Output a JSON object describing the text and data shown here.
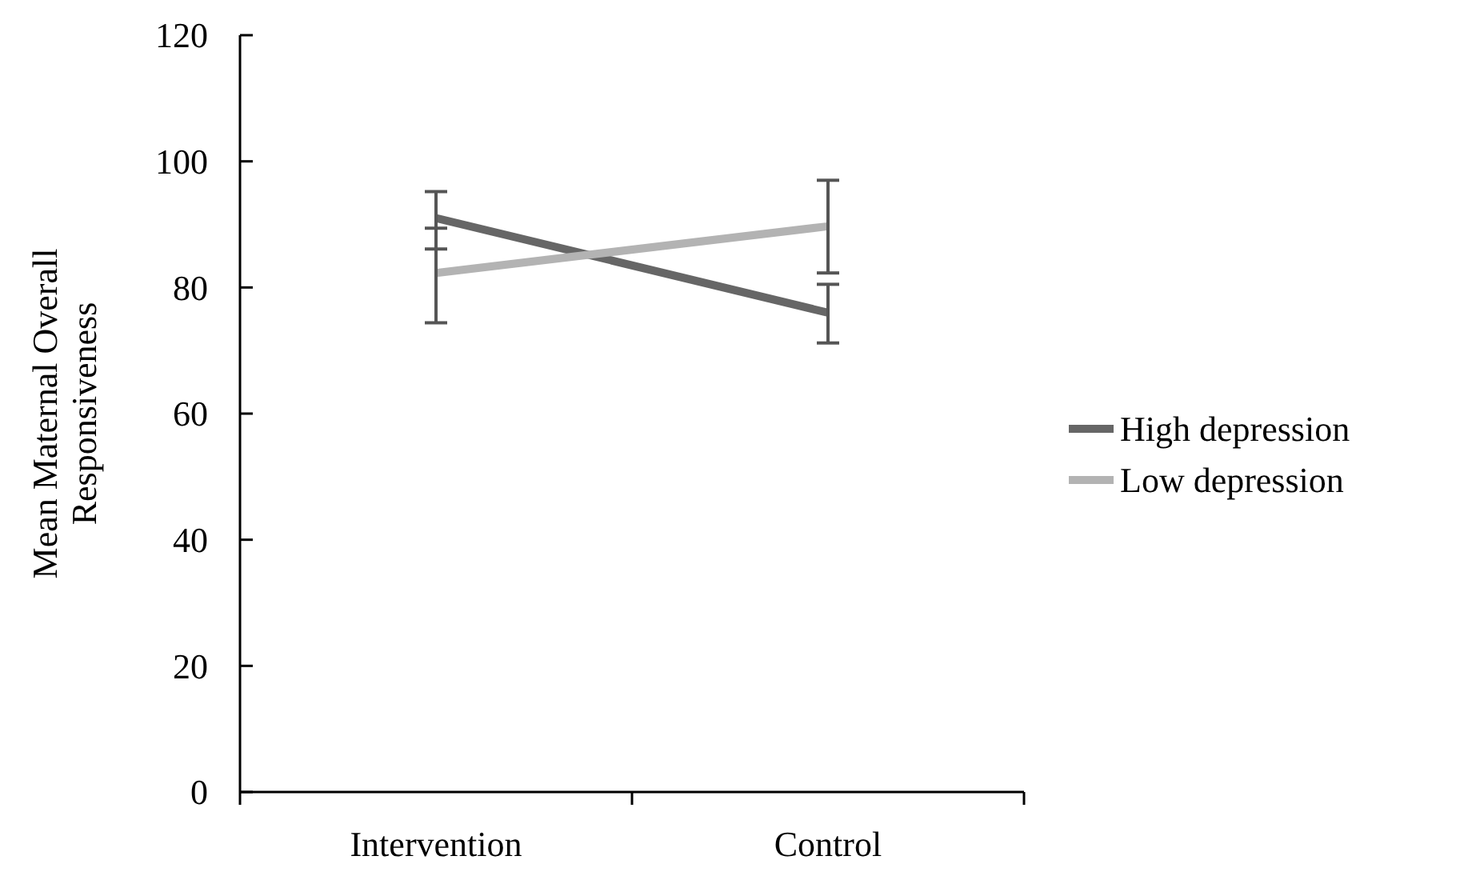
{
  "chart_data": {
    "type": "line",
    "ylabel": "Mean Maternal Overall Responsiveness",
    "categories": [
      "Intervention",
      "Control"
    ],
    "ylim": [
      0,
      120
    ],
    "yticks": [
      0,
      20,
      40,
      60,
      80,
      100,
      120
    ],
    "legend": "right",
    "marker": "none",
    "line_style": "solid",
    "series": [
      {
        "name": "High depression",
        "color": "#666666",
        "values": [
          91,
          76
        ],
        "errors": [
          [
            86.1,
            95.2
          ],
          [
            71.2,
            80.5
          ]
        ]
      },
      {
        "name": "Low depression",
        "color": "#b3b3b3",
        "values": [
          82.3,
          89.7
        ],
        "errors": [
          [
            74.4,
            89.4
          ],
          [
            82.3,
            97
          ]
        ]
      }
    ]
  }
}
